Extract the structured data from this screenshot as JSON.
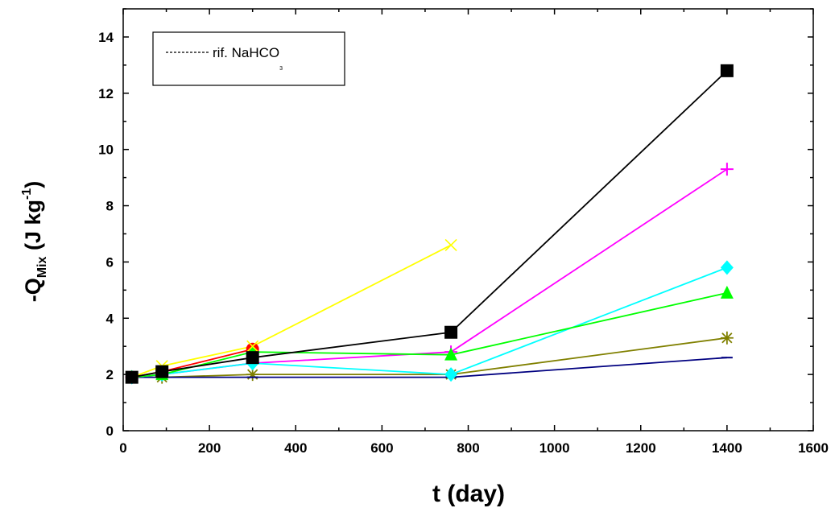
{
  "chart_data": {
    "type": "line",
    "xlabel": "t (day)",
    "ylabel": {
      "prefix": "-Q",
      "subscript": "Mix",
      "unit_open": " (J kg",
      "superscript": "-1",
      "unit_close": ")"
    },
    "xlim": [
      0,
      1600
    ],
    "ylim": [
      0,
      15
    ],
    "x_ticks": [
      0,
      200,
      400,
      600,
      800,
      1000,
      1200,
      1400,
      1600
    ],
    "y_ticks": [
      0,
      2,
      4,
      6,
      8,
      10,
      12,
      14
    ],
    "x_tick_labels": [
      "0",
      "200",
      "400",
      "600",
      "800",
      "1000",
      "1200",
      "1400",
      "1600"
    ],
    "y_tick_labels": [
      "0",
      "2",
      "4",
      "6",
      "8",
      "10",
      "12",
      "14"
    ],
    "grid": false,
    "legend": {
      "position": "top-left",
      "entries": [
        {
          "line_style": "dashed",
          "text": "rif. NaHCO",
          "subscript": "3"
        }
      ]
    },
    "series": [
      {
        "color": "#000000",
        "marker": "square",
        "x": [
          20,
          90,
          300,
          760,
          1400
        ],
        "y": [
          1.9,
          2.1,
          2.6,
          3.5,
          12.8
        ]
      },
      {
        "color": "#ff00ff",
        "marker": "plus",
        "x": [
          20,
          90,
          300,
          760,
          1400
        ],
        "y": [
          1.9,
          2.0,
          2.4,
          2.8,
          9.3
        ]
      },
      {
        "color": "#00ffff",
        "marker": "diamond",
        "x": [
          20,
          90,
          300,
          760,
          1400
        ],
        "y": [
          1.9,
          2.0,
          2.4,
          2.0,
          5.8
        ]
      },
      {
        "color": "#00ff00",
        "marker": "triangle",
        "x": [
          20,
          90,
          300,
          760,
          1400
        ],
        "y": [
          1.9,
          2.0,
          2.8,
          2.7,
          4.9
        ]
      },
      {
        "color": "#808000",
        "marker": "asterisk",
        "x": [
          20,
          90,
          300,
          760,
          1400
        ],
        "y": [
          1.9,
          1.9,
          2.0,
          2.0,
          3.3
        ]
      },
      {
        "color": "#000080",
        "marker": "dash",
        "x": [
          20,
          90,
          300,
          760,
          1400
        ],
        "y": [
          1.9,
          1.9,
          1.9,
          1.9,
          2.6
        ]
      },
      {
        "color": "#ff0000",
        "marker": "circle",
        "x": [
          20,
          90,
          300
        ],
        "y": [
          1.9,
          2.1,
          2.9
        ]
      },
      {
        "color": "#ffff00",
        "marker": "x",
        "x": [
          20,
          90,
          300,
          760
        ],
        "y": [
          1.9,
          2.3,
          3.0,
          6.6
        ]
      }
    ]
  }
}
